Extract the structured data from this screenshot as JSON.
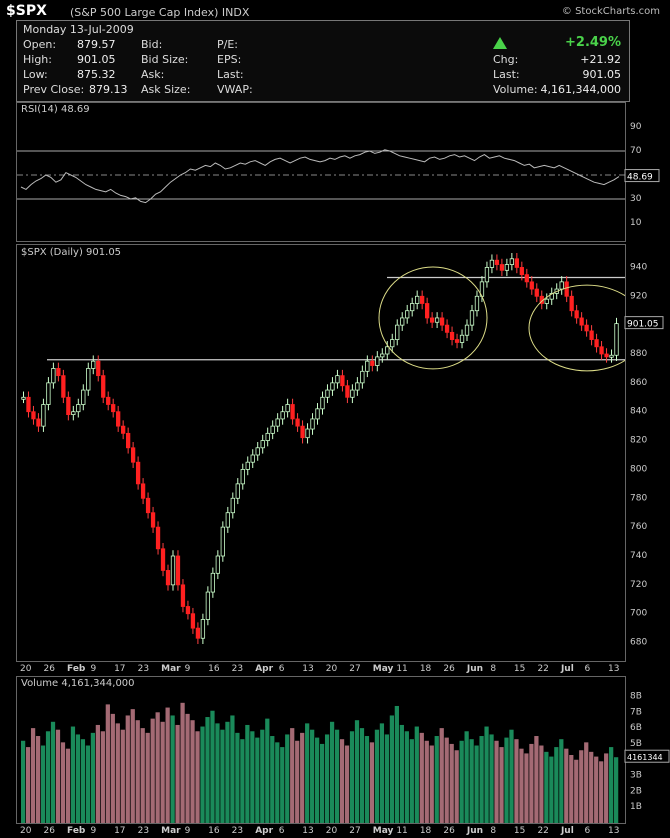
{
  "header": {
    "symbol": "$SPX",
    "subtitle": "(S&P 500 Large Cap Index) INDX",
    "brand": "© StockCharts.com"
  },
  "quote": {
    "date": "Monday 13-Jul-2009",
    "open_label": "Open:",
    "open": "879.57",
    "high_label": "High:",
    "high": "901.05",
    "low_label": "Low:",
    "low": "875.32",
    "prevclose_label": "Prev Close:",
    "prevclose": "879.13",
    "bid_label": "Bid:",
    "bidsize_label": "Bid Size:",
    "ask_label": "Ask:",
    "asksize_label": "Ask Size:",
    "pe_label": "P/E:",
    "eps_label": "EPS:",
    "last2_label": "Last:",
    "vwap_label": "VWAP:",
    "pct": "+2.49%",
    "chg_label": "Chg:",
    "chg": "+21.92",
    "last_label": "Last:",
    "last": "901.05",
    "volume_label": "Volume:",
    "volume": "4,161,344,000",
    "up_color": "#4ad24a"
  },
  "chart_data": [
    {
      "type": "line",
      "name": "RSI",
      "label": "RSI(14) 48.69",
      "current_value": "48.69",
      "ylim": [
        0,
        100
      ],
      "yticks": [
        10,
        30,
        50,
        70,
        90
      ],
      "levels": [
        70,
        30
      ],
      "series": [
        {
          "name": "RSI(14)",
          "values": [
            40,
            38,
            42,
            45,
            47,
            50,
            48,
            44,
            46,
            52,
            50,
            48,
            45,
            42,
            40,
            38,
            37,
            36,
            38,
            35,
            33,
            32,
            30,
            31,
            28,
            27,
            30,
            34,
            36,
            40,
            44,
            47,
            50,
            52,
            55,
            54,
            56,
            58,
            57,
            60,
            58,
            55,
            56,
            58,
            60,
            59,
            61,
            62,
            60,
            58,
            61,
            63,
            64,
            62,
            60,
            62,
            64,
            65,
            63,
            62,
            61,
            62,
            64,
            63,
            65,
            66,
            64,
            66,
            67,
            69,
            70,
            68,
            69,
            71,
            70,
            68,
            66,
            65,
            64,
            63,
            62,
            61,
            64,
            65,
            63,
            64,
            66,
            67,
            65,
            66,
            64,
            62,
            65,
            67,
            64,
            65,
            66,
            64,
            63,
            62,
            60,
            58,
            59,
            56,
            57,
            58,
            57,
            56,
            58,
            56,
            54,
            52,
            50,
            48,
            46,
            44,
            43,
            42,
            44,
            46,
            48.69
          ]
        }
      ]
    },
    {
      "type": "candlestick",
      "name": "Price",
      "label": "$SPX (Daily) 901.05",
      "current_value": "901.05",
      "ylim": [
        670,
        950
      ],
      "yticks": [
        680,
        700,
        720,
        740,
        760,
        780,
        800,
        820,
        840,
        860,
        880,
        900,
        920,
        940
      ],
      "x": [
        "20",
        "26",
        "Feb",
        "9",
        "17",
        "23",
        "Mar",
        "9",
        "16",
        "23",
        "Apr",
        "6",
        "13",
        "20",
        "27",
        "May",
        "11",
        "18",
        "26",
        "Jun",
        "8",
        "15",
        "22",
        "Jul",
        "6",
        "13"
      ],
      "lines": [
        876,
        933
      ],
      "closes": [
        850,
        840,
        835,
        830,
        845,
        860,
        870,
        865,
        850,
        838,
        840,
        845,
        855,
        870,
        875,
        865,
        850,
        845,
        840,
        830,
        825,
        815,
        805,
        790,
        780,
        770,
        760,
        745,
        730,
        720,
        740,
        720,
        705,
        700,
        690,
        683,
        696,
        715,
        728,
        740,
        760,
        770,
        780,
        790,
        800,
        805,
        810,
        815,
        820,
        825,
        830,
        835,
        840,
        845,
        835,
        830,
        822,
        828,
        835,
        842,
        850,
        855,
        860,
        865,
        858,
        850,
        855,
        860,
        868,
        875,
        872,
        878,
        880,
        885,
        890,
        900,
        905,
        910,
        915,
        920,
        915,
        905,
        902,
        905,
        900,
        895,
        890,
        888,
        893,
        900,
        910,
        920,
        930,
        940,
        945,
        942,
        938,
        942,
        946,
        940,
        935,
        930,
        925,
        920,
        915,
        918,
        922,
        925,
        930,
        920,
        910,
        905,
        900,
        896,
        890,
        885,
        880,
        878,
        879.13,
        901.05
      ]
    },
    {
      "type": "bar",
      "name": "Volume",
      "label": "Volume 4,161,344,000",
      "current_value": "4161344",
      "yticks": [
        "1B",
        "2B",
        "3B",
        "4B",
        "5B",
        "6B",
        "7B",
        "8B"
      ],
      "values_billions": [
        5.2,
        4.8,
        6.0,
        5.5,
        4.9,
        5.8,
        6.4,
        5.9,
        5.1,
        4.7,
        6.1,
        5.6,
        5.3,
        4.9,
        5.7,
        6.2,
        5.8,
        7.5,
        6.9,
        6.3,
        5.9,
        6.8,
        7.2,
        6.5,
        6.0,
        5.7,
        6.6,
        7.0,
        6.4,
        7.3,
        6.8,
        6.2,
        7.6,
        6.9,
        6.5,
        5.8,
        6.1,
        6.7,
        7.1,
        6.3,
        5.9,
        6.4,
        6.8,
        5.7,
        5.3,
        6.2,
        5.8,
        5.4,
        5.9,
        6.6,
        5.5,
        5.1,
        4.8,
        5.6,
        6.0,
        5.2,
        5.7,
        6.3,
        5.9,
        5.4,
        5.0,
        5.6,
        6.4,
        5.9,
        5.3,
        4.9,
        5.8,
        6.5,
        6.0,
        5.5,
        5.1,
        5.9,
        6.3,
        5.6,
        6.8,
        7.4,
        6.2,
        5.8,
        5.3,
        6.1,
        5.7,
        5.2,
        4.9,
        5.5,
        6.0,
        5.4,
        5.0,
        4.6,
        5.2,
        5.8,
        5.3,
        4.9,
        5.5,
        6.1,
        5.6,
        5.2,
        4.8,
        5.4,
        5.9,
        5.3,
        4.7,
        4.4,
        5.0,
        5.5,
        4.9,
        4.5,
        4.2,
        4.8,
        5.3,
        4.7,
        4.3,
        4.0,
        4.6,
        5.1,
        4.5,
        4.2,
        3.9,
        4.4,
        4.8,
        4.16
      ]
    }
  ]
}
